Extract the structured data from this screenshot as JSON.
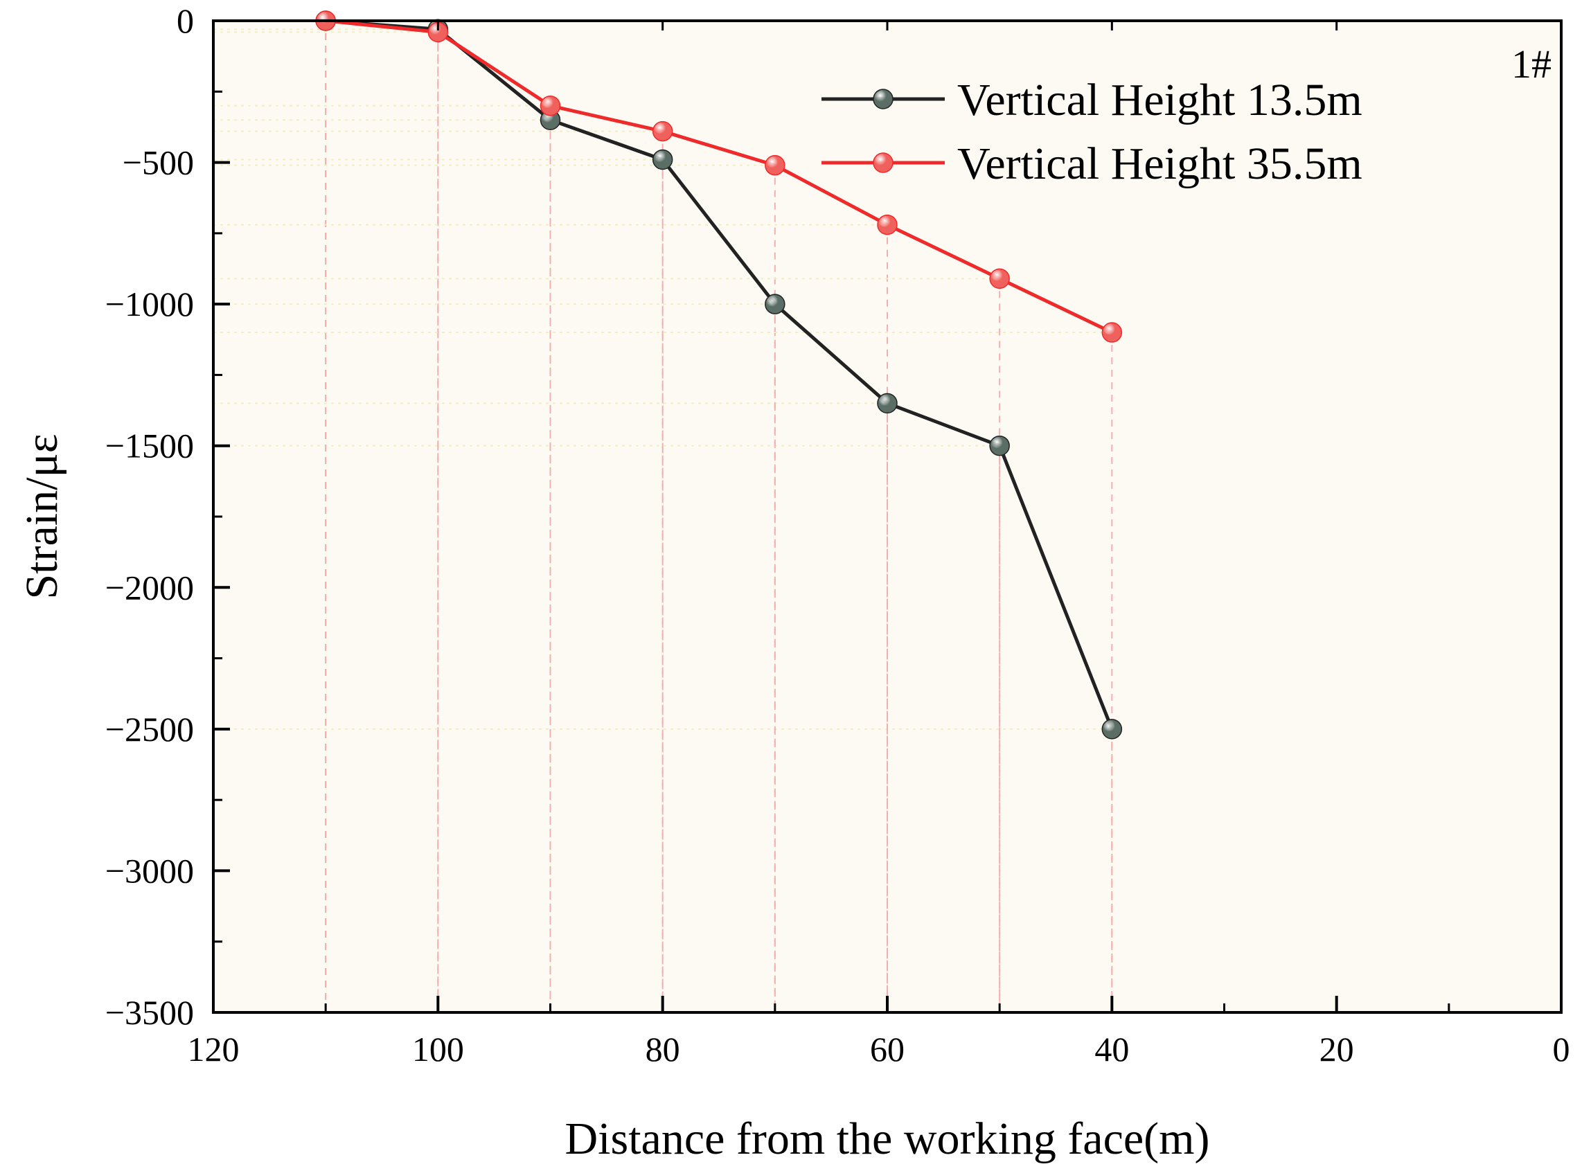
{
  "chart_data": {
    "type": "line",
    "annotation": "1#",
    "xlabel": "Distance from the working face(m)",
    "ylabel": "Strain/με",
    "xlim": [
      120,
      0
    ],
    "ylim": [
      -3500,
      0
    ],
    "x_ticks": [
      120,
      100,
      80,
      60,
      40,
      20,
      0
    ],
    "y_ticks": [
      0,
      -500,
      -1000,
      -1500,
      -2000,
      -2500,
      -3000,
      -3500
    ],
    "x_tick_labels": [
      "120",
      "100",
      "80",
      "60",
      "40",
      "20",
      "0"
    ],
    "y_tick_labels": [
      "0",
      "−500",
      "−1000",
      "−1500",
      "−2000",
      "−2500",
      "−3000",
      "−3500"
    ],
    "legend_position": "top-right",
    "background": "#fdfaf4",
    "series": [
      {
        "name": "Vertical Height 13.5m",
        "color": "#222222",
        "marker_color": "#5a6e66",
        "x": [
          110,
          100,
          90,
          80,
          70,
          60,
          50,
          40
        ],
        "values": [
          0,
          -30,
          -350,
          -490,
          -1000,
          -1350,
          -1500,
          -2500
        ]
      },
      {
        "name": "Vertical Height 35.5m",
        "color": "#ee2a2a",
        "marker_color": "#f0605c",
        "x": [
          110,
          100,
          90,
          80,
          70,
          60,
          50,
          40
        ],
        "values": [
          0,
          -40,
          -300,
          -390,
          -510,
          -720,
          -910,
          -1100
        ]
      }
    ]
  }
}
